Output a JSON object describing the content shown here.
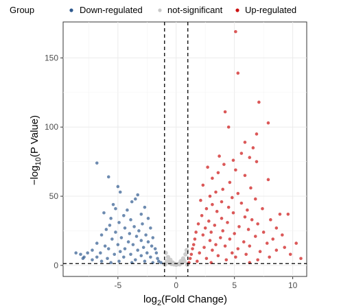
{
  "chart_data": {
    "type": "scatter",
    "subtype": "volcano",
    "legend": {
      "title": "Group",
      "placement": "top",
      "entries": [
        {
          "key": "down",
          "label": "Down-regulated",
          "color": "#2f5a8e"
        },
        {
          "key": "ns",
          "label": "not-significant",
          "color": "#c8c8c8"
        },
        {
          "key": "up",
          "label": "Up-regulated",
          "color": "#cc1111"
        }
      ]
    },
    "xlabel": {
      "prefix": "log",
      "sub": "2",
      "suffix": "(Fold Change)"
    },
    "ylabel": {
      "prefix": "−log",
      "sub": "10",
      "suffix": "(P Value)"
    },
    "xlim": [
      -9.7,
      11.2
    ],
    "ylim": [
      -8,
      176
    ],
    "xticks": [
      -5,
      0,
      5,
      10
    ],
    "yticks": [
      0,
      50,
      100,
      150
    ],
    "grid": true,
    "thresholds": {
      "x": [
        -1,
        1
      ],
      "y": 1.3
    },
    "series": [
      {
        "key": "down",
        "points": [
          [
            -6.8,
            74
          ],
          [
            -5.8,
            64
          ],
          [
            -5.0,
            57
          ],
          [
            -4.8,
            53
          ],
          [
            -3.3,
            51
          ],
          [
            -3.5,
            48
          ],
          [
            -3.8,
            46
          ],
          [
            -5.4,
            44
          ],
          [
            -5.2,
            41
          ],
          [
            -4.2,
            40
          ],
          [
            -2.7,
            42
          ],
          [
            -6.2,
            38
          ],
          [
            -3.0,
            37
          ],
          [
            -4.5,
            36
          ],
          [
            -5.6,
            34
          ],
          [
            -2.4,
            34
          ],
          [
            -3.9,
            33
          ],
          [
            -4.9,
            31
          ],
          [
            -5.7,
            29
          ],
          [
            -2.9,
            30
          ],
          [
            -3.6,
            28
          ],
          [
            -4.4,
            27
          ],
          [
            -6.0,
            26
          ],
          [
            -2.2,
            27
          ],
          [
            -3.2,
            25
          ],
          [
            -5.2,
            24
          ],
          [
            -4.0,
            23
          ],
          [
            -6.4,
            22
          ],
          [
            -2.6,
            22
          ],
          [
            -3.4,
            21
          ],
          [
            -4.7,
            20
          ],
          [
            -5.5,
            19
          ],
          [
            -2.0,
            20
          ],
          [
            -3.0,
            18
          ],
          [
            -4.1,
            17
          ],
          [
            -6.8,
            16
          ],
          [
            -2.4,
            17
          ],
          [
            -3.7,
            15
          ],
          [
            -5.0,
            15
          ],
          [
            -6.1,
            14
          ],
          [
            -2.1,
            14
          ],
          [
            -2.8,
            13
          ],
          [
            -4.4,
            12
          ],
          [
            -5.8,
            12
          ],
          [
            -7.2,
            11
          ],
          [
            -3.3,
            11
          ],
          [
            -1.8,
            12
          ],
          [
            -4.8,
            10
          ],
          [
            -6.5,
            9
          ],
          [
            -7.6,
            9
          ],
          [
            -2.5,
            9
          ],
          [
            -3.9,
            8
          ],
          [
            -5.3,
            8
          ],
          [
            -8.2,
            8
          ],
          [
            -1.7,
            9
          ],
          [
            -3.0,
            7
          ],
          [
            -6.8,
            6
          ],
          [
            -7.9,
            6
          ],
          [
            -8.6,
            9
          ],
          [
            -4.5,
            6
          ],
          [
            -2.2,
            6
          ],
          [
            -5.9,
            5
          ],
          [
            -8.0,
            5
          ],
          [
            -3.5,
            4
          ],
          [
            -1.6,
            5
          ],
          [
            -7.2,
            4
          ],
          [
            -4.9,
            3
          ],
          [
            -2.7,
            3
          ],
          [
            -6.4,
            3
          ],
          [
            -1.5,
            3
          ],
          [
            -3.8,
            2
          ],
          [
            -5.6,
            2
          ],
          [
            -2.0,
            2
          ],
          [
            -1.3,
            2
          ]
        ]
      },
      {
        "key": "ns",
        "points": [
          [
            -0.9,
            9
          ],
          [
            -0.7,
            6
          ],
          [
            -0.5,
            4
          ],
          [
            -0.3,
            2
          ],
          [
            -0.1,
            1
          ],
          [
            0.2,
            1
          ],
          [
            0.4,
            3
          ],
          [
            0.6,
            5
          ],
          [
            0.8,
            8
          ],
          [
            0.9,
            11
          ],
          [
            -0.8,
            3
          ],
          [
            -0.4,
            1
          ],
          [
            0.0,
            0.5
          ],
          [
            0.5,
            2
          ],
          [
            0.7,
            3
          ],
          [
            -0.6,
            2
          ],
          [
            -0.2,
            0.8
          ],
          [
            0.3,
            0.8
          ],
          [
            -1.0,
            1.0
          ],
          [
            1.0,
            1.0
          ],
          [
            -0.95,
            0.6
          ],
          [
            0.95,
            0.6
          ]
        ]
      },
      {
        "key": "up",
        "points": [
          [
            5.1,
            169
          ],
          [
            5.3,
            139
          ],
          [
            7.1,
            118
          ],
          [
            4.2,
            111
          ],
          [
            7.9,
            103
          ],
          [
            4.5,
            100
          ],
          [
            6.9,
            95
          ],
          [
            5.9,
            89
          ],
          [
            6.6,
            85
          ],
          [
            5.6,
            81
          ],
          [
            3.7,
            79
          ],
          [
            6.3,
            78
          ],
          [
            4.9,
            76
          ],
          [
            6.9,
            75
          ],
          [
            4.1,
            73
          ],
          [
            2.7,
            71
          ],
          [
            5.1,
            69
          ],
          [
            3.6,
            67
          ],
          [
            5.9,
            65
          ],
          [
            3.1,
            63
          ],
          [
            7.9,
            62
          ],
          [
            4.6,
            60
          ],
          [
            2.3,
            58
          ],
          [
            6.4,
            56
          ],
          [
            4.0,
            55
          ],
          [
            3.4,
            53
          ],
          [
            5.3,
            52
          ],
          [
            2.9,
            50
          ],
          [
            4.8,
            49
          ],
          [
            6.8,
            48
          ],
          [
            2.1,
            47
          ],
          [
            3.9,
            46
          ],
          [
            5.6,
            45
          ],
          [
            3.1,
            44
          ],
          [
            4.5,
            42
          ],
          [
            7.4,
            41
          ],
          [
            2.6,
            41
          ],
          [
            6.1,
            40
          ],
          [
            3.5,
            39
          ],
          [
            9.6,
            37
          ],
          [
            8.9,
            37
          ],
          [
            4.9,
            38
          ],
          [
            2.2,
            36
          ],
          [
            5.9,
            35
          ],
          [
            3.9,
            34
          ],
          [
            8.1,
            33
          ],
          [
            6.5,
            33
          ],
          [
            2.8,
            32
          ],
          [
            4.4,
            31
          ],
          [
            7.0,
            30
          ],
          [
            1.9,
            30
          ],
          [
            3.3,
            29
          ],
          [
            5.4,
            28
          ],
          [
            8.6,
            27
          ],
          [
            2.5,
            27
          ],
          [
            6.2,
            26
          ],
          [
            4.0,
            25
          ],
          [
            3.0,
            24
          ],
          [
            7.5,
            24
          ],
          [
            1.7,
            24
          ],
          [
            5.0,
            23
          ],
          [
            9.1,
            22
          ],
          [
            2.3,
            22
          ],
          [
            6.8,
            21
          ],
          [
            3.8,
            20
          ],
          [
            8.3,
            19
          ],
          [
            4.6,
            19
          ],
          [
            1.6,
            19
          ],
          [
            2.9,
            18
          ],
          [
            5.8,
            17
          ],
          [
            10.3,
            16
          ],
          [
            7.8,
            16
          ],
          [
            3.4,
            15
          ],
          [
            1.5,
            15
          ],
          [
            6.3,
            14
          ],
          [
            4.2,
            14
          ],
          [
            9.3,
            13
          ],
          [
            2.4,
            13
          ],
          [
            5.3,
            12
          ],
          [
            8.6,
            11
          ],
          [
            1.4,
            12
          ],
          [
            3.1,
            11
          ],
          [
            7.2,
            10
          ],
          [
            4.8,
            9
          ],
          [
            2.0,
            9
          ],
          [
            9.8,
            8
          ],
          [
            6.0,
            8
          ],
          [
            1.3,
            8
          ],
          [
            3.6,
            7
          ],
          [
            8.0,
            6
          ],
          [
            5.1,
            6
          ],
          [
            2.6,
            5
          ],
          [
            10.7,
            5
          ],
          [
            1.2,
            5
          ],
          [
            4.3,
            4
          ],
          [
            7.0,
            4
          ],
          [
            1.8,
            3
          ],
          [
            3.0,
            2
          ],
          [
            6.3,
            2
          ],
          [
            1.1,
            2
          ]
        ]
      }
    ]
  }
}
